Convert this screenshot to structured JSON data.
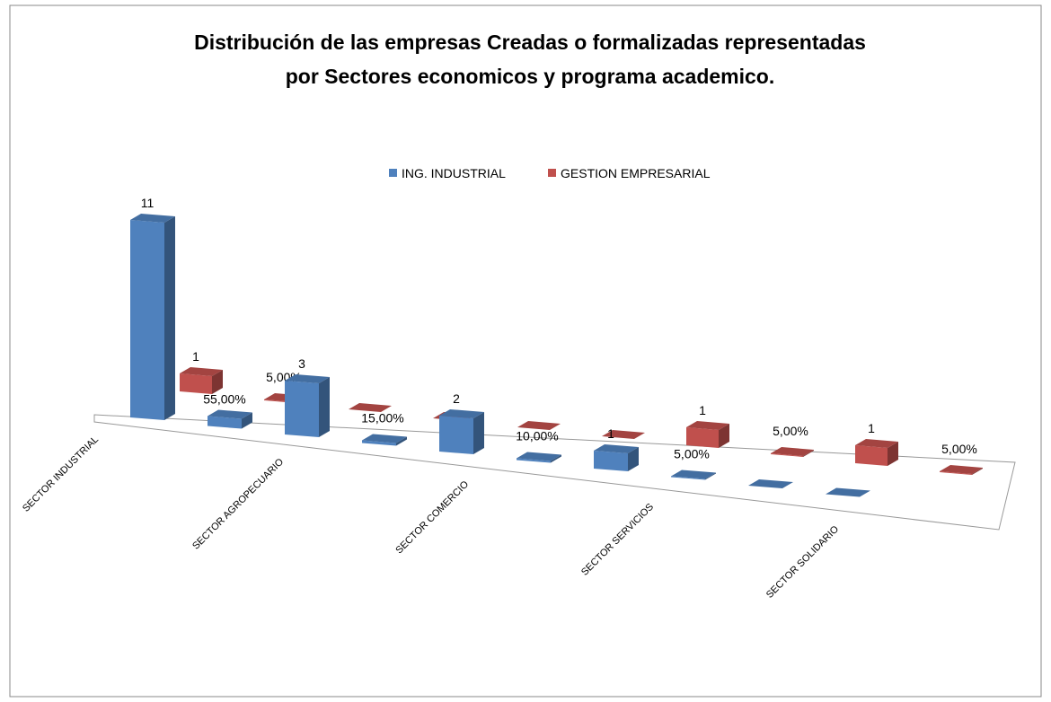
{
  "chart_data": {
    "type": "bar3d",
    "title": [
      "Distribución  de las empresas Creadas o formalizadas representadas",
      "por Sectores economicos  y programa academico."
    ],
    "categories": [
      "SECTOR INDUSTRIAL",
      null,
      "SECTOR AGROPECUARIO",
      null,
      "SECTOR COMERCIO",
      null,
      "SECTOR SERVICIOS",
      null,
      "SECTOR SOLIDARIO",
      null
    ],
    "series": [
      {
        "name": "ING. INDUSTRIAL",
        "color": "#4f81bd",
        "values": [
          11,
          0.55,
          3,
          0.15,
          2,
          0.1,
          1,
          0.05,
          0,
          0
        ],
        "value_labels": [
          "11",
          "55,00%",
          "3",
          "15,00%",
          "2",
          "10,00%",
          "1",
          "5,00%",
          null,
          null
        ]
      },
      {
        "name": "GESTION EMPRESARIAL",
        "color": "#c0504d",
        "values": [
          1,
          0.05,
          0,
          0,
          0,
          0,
          1,
          0.05,
          1,
          0.05
        ],
        "value_labels": [
          "1",
          "5,00%",
          null,
          null,
          null,
          null,
          "1",
          "5,00%",
          "1",
          "5,00%"
        ]
      }
    ],
    "legend": "top"
  }
}
